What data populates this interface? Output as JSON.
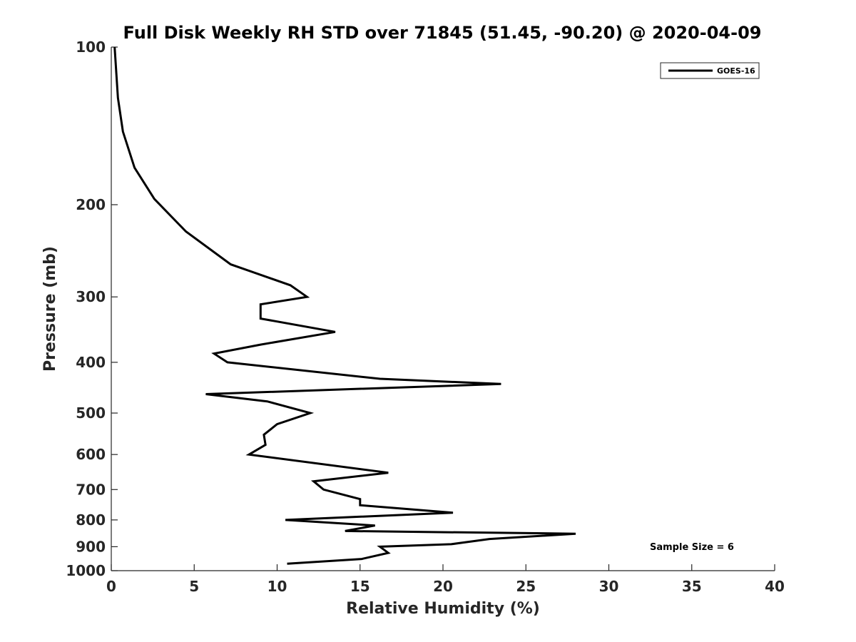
{
  "chart_data": {
    "type": "line",
    "title": "Full Disk Weekly RH STD over 71845 (51.45, -90.20) @ 2020-04-09",
    "xlabel": "Relative Humidity (%)",
    "ylabel": "Pressure (mb)",
    "xlim": [
      0,
      40
    ],
    "ylim": [
      100,
      1000
    ],
    "yscale": "log",
    "y_reversed": true,
    "grid": false,
    "legend_position": "top-right",
    "x_ticks": [
      0,
      5,
      10,
      15,
      20,
      25,
      30,
      35,
      40
    ],
    "y_ticks": [
      100,
      200,
      300,
      400,
      500,
      600,
      700,
      800,
      900,
      1000
    ],
    "annotation": "Sample Size = 6",
    "series": [
      {
        "name": "GOES-16",
        "color": "#000000",
        "points": [
          [
            0.2,
            100
          ],
          [
            0.4,
            125
          ],
          [
            0.7,
            145
          ],
          [
            1.4,
            170
          ],
          [
            2.6,
            195
          ],
          [
            4.5,
            225
          ],
          [
            7.2,
            260
          ],
          [
            10.8,
            285
          ],
          [
            11.8,
            300
          ],
          [
            9.0,
            310
          ],
          [
            9.0,
            330
          ],
          [
            13.5,
            350
          ],
          [
            9.0,
            370
          ],
          [
            6.2,
            385
          ],
          [
            7.0,
            400
          ],
          [
            16.2,
            430
          ],
          [
            23.5,
            440
          ],
          [
            5.7,
            460
          ],
          [
            9.4,
            475
          ],
          [
            12.0,
            500
          ],
          [
            10.0,
            525
          ],
          [
            9.2,
            550
          ],
          [
            9.3,
            575
          ],
          [
            8.3,
            600
          ],
          [
            16.7,
            650
          ],
          [
            12.2,
            675
          ],
          [
            12.8,
            700
          ],
          [
            15.0,
            730
          ],
          [
            15.0,
            750
          ],
          [
            20.6,
            775
          ],
          [
            10.5,
            800
          ],
          [
            15.9,
            820
          ],
          [
            14.1,
            840
          ],
          [
            28.0,
            850
          ],
          [
            22.8,
            870
          ],
          [
            20.5,
            890
          ],
          [
            16.2,
            900
          ],
          [
            16.7,
            925
          ],
          [
            15.1,
            950
          ],
          [
            10.6,
            970
          ]
        ]
      }
    ]
  }
}
